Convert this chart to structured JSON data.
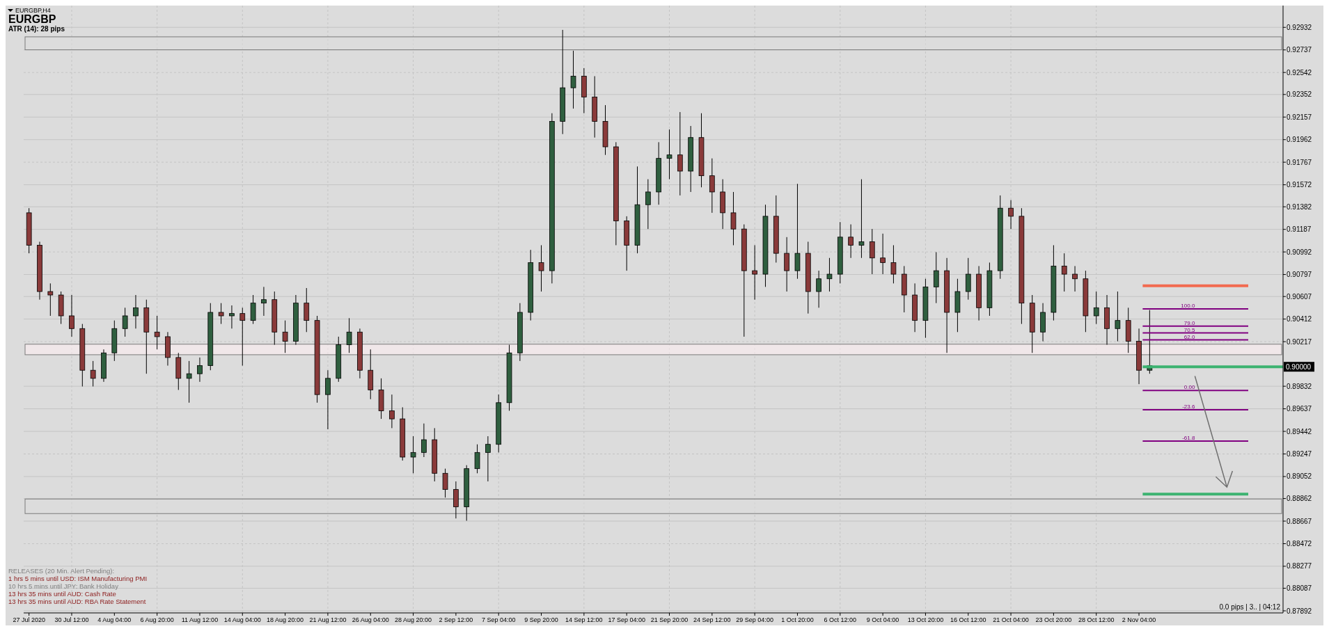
{
  "chart_data": {
    "type": "candlestick",
    "subtitle": "EURGBP,H4",
    "title": "EURGBP",
    "annotations": [
      "ATR (14): 28 pips",
      "RELEASES  (20 Min. Alert Pending):",
      "1 hrs 5 mins until USD: ISM Manufacturing PMI",
      "10 hrs 5 mins until JPY: Bank Holiday",
      "13 hrs 35 mins until AUD: Cash Rate",
      "13 hrs 35 mins until AUD: RBA Rate Statement",
      "0.0 pips | 3.. | 04:12",
      "100.0",
      "79.0",
      "70.5",
      "62.0",
      "0.00",
      "-23.6",
      "-61.8"
    ],
    "categories": [
      "27 Jul 2020",
      null,
      null,
      null,
      "30 Jul 12:00",
      null,
      null,
      null,
      "4 Aug 04:00",
      null,
      null,
      null,
      "6 Aug 20:00",
      null,
      null,
      null,
      "11 Aug 12:00",
      null,
      null,
      null,
      "14 Aug 04:00",
      null,
      null,
      null,
      "18 Aug 20:00",
      null,
      null,
      null,
      "21 Aug 12:00",
      null,
      null,
      null,
      "26 Aug 04:00",
      null,
      null,
      null,
      "28 Aug 20:00",
      null,
      null,
      null,
      "2 Sep 12:00",
      null,
      null,
      null,
      "7 Sep 04:00",
      null,
      null,
      null,
      "9 Sep 20:00",
      null,
      null,
      null,
      "14 Sep 12:00",
      null,
      null,
      null,
      "17 Sep 04:00",
      null,
      null,
      null,
      "21 Sep 20:00",
      null,
      null,
      null,
      "24 Sep 12:00",
      null,
      null,
      null,
      "29 Sep 04:00",
      null,
      null,
      null,
      "1 Oct 20:00",
      null,
      null,
      null,
      "6 Oct 12:00",
      null,
      null,
      null,
      "9 Oct 04:00",
      null,
      null,
      null,
      "13 Oct 20:00",
      null,
      null,
      null,
      "16 Oct 12:00",
      null,
      null,
      null,
      "21 Oct 04:00",
      null,
      null,
      null,
      "23 Oct 20:00",
      null,
      null,
      null,
      "28 Oct 12:00",
      null,
      null,
      null,
      "2 Nov 04:00",
      null,
      null,
      null,
      null,
      null,
      null,
      null,
      null,
      null,
      null,
      null,
      null,
      null
    ],
    "ohlc": [
      [
        0.9133,
        0.9137,
        0.9098,
        0.9105
      ],
      [
        0.9105,
        0.9108,
        0.9058,
        0.9065
      ],
      [
        0.9065,
        0.9072,
        0.9044,
        0.9062
      ],
      [
        0.9062,
        0.9065,
        0.9037,
        0.9044
      ],
      [
        0.9044,
        0.9062,
        0.9026,
        0.9033
      ],
      [
        0.9033,
        0.9037,
        0.8983,
        0.8997
      ],
      [
        0.8997,
        0.9005,
        0.8983,
        0.899
      ],
      [
        0.899,
        0.9015,
        0.8987,
        0.9012
      ],
      [
        0.9012,
        0.904,
        0.9005,
        0.9033
      ],
      [
        0.9033,
        0.9051,
        0.9026,
        0.9044
      ],
      [
        0.9044,
        0.9062,
        0.9033,
        0.9051
      ],
      [
        0.9051,
        0.9058,
        0.8994,
        0.903
      ],
      [
        0.903,
        0.9044,
        0.9015,
        0.9026
      ],
      [
        0.9026,
        0.903,
        0.9001,
        0.9008
      ],
      [
        0.9008,
        0.9012,
        0.898,
        0.899
      ],
      [
        0.899,
        0.9005,
        0.8969,
        0.8994
      ],
      [
        0.8994,
        0.9008,
        0.8987,
        0.9001
      ],
      [
        0.9001,
        0.9055,
        0.8997,
        0.9047
      ],
      [
        0.9047,
        0.9055,
        0.9037,
        0.9044
      ],
      [
        0.9044,
        0.9053,
        0.9033,
        0.9046
      ],
      [
        0.9046,
        0.9051,
        0.9001,
        0.904
      ],
      [
        0.904,
        0.9062,
        0.9037,
        0.9055
      ],
      [
        0.9055,
        0.9069,
        0.9044,
        0.9058
      ],
      [
        0.9058,
        0.9065,
        0.9019,
        0.903
      ],
      [
        0.903,
        0.904,
        0.9012,
        0.9022
      ],
      [
        0.9022,
        0.9062,
        0.9019,
        0.9055
      ],
      [
        0.9055,
        0.9068,
        0.903,
        0.904
      ],
      [
        0.904,
        0.9044,
        0.8969,
        0.8976
      ],
      [
        0.8976,
        0.8997,
        0.8946,
        0.899
      ],
      [
        0.899,
        0.9026,
        0.8987,
        0.9019
      ],
      [
        0.9019,
        0.9042,
        0.9012,
        0.903
      ],
      [
        0.903,
        0.9033,
        0.899,
        0.8997
      ],
      [
        0.8997,
        0.9015,
        0.8972,
        0.898
      ],
      [
        0.898,
        0.899,
        0.8955,
        0.8962
      ],
      [
        0.8962,
        0.8976,
        0.8947,
        0.8955
      ],
      [
        0.8955,
        0.8965,
        0.8919,
        0.8922
      ],
      [
        0.8922,
        0.894,
        0.8908,
        0.8926
      ],
      [
        0.8926,
        0.8951,
        0.8922,
        0.8937
      ],
      [
        0.8937,
        0.8947,
        0.8901,
        0.8908
      ],
      [
        0.8908,
        0.8912,
        0.8887,
        0.8894
      ],
      [
        0.8894,
        0.8901,
        0.8869,
        0.8879
      ],
      [
        0.8879,
        0.8915,
        0.8867,
        0.8912
      ],
      [
        0.8912,
        0.8933,
        0.8908,
        0.8926
      ],
      [
        0.8926,
        0.894,
        0.8901,
        0.8933
      ],
      [
        0.8933,
        0.8976,
        0.8926,
        0.8969
      ],
      [
        0.8969,
        0.9019,
        0.8962,
        0.9012
      ],
      [
        0.9012,
        0.9055,
        0.9005,
        0.9047
      ],
      [
        0.9047,
        0.9101,
        0.904,
        0.909
      ],
      [
        0.909,
        0.9105,
        0.9065,
        0.9083
      ],
      [
        0.9083,
        0.9219,
        0.9072,
        0.9212
      ],
      [
        0.9212,
        0.9291,
        0.9201,
        0.9241
      ],
      [
        0.9241,
        0.9273,
        0.9223,
        0.9251
      ],
      [
        0.9251,
        0.9258,
        0.9219,
        0.9233
      ],
      [
        0.9233,
        0.9251,
        0.9198,
        0.9212
      ],
      [
        0.9212,
        0.9226,
        0.9183,
        0.919
      ],
      [
        0.919,
        0.9194,
        0.9105,
        0.9126
      ],
      [
        0.9126,
        0.913,
        0.9083,
        0.9105
      ],
      [
        0.9105,
        0.9173,
        0.9098,
        0.914
      ],
      [
        0.914,
        0.9162,
        0.9119,
        0.9151
      ],
      [
        0.9151,
        0.9194,
        0.914,
        0.918
      ],
      [
        0.918,
        0.9205,
        0.9162,
        0.9183
      ],
      [
        0.9183,
        0.922,
        0.9148,
        0.9169
      ],
      [
        0.9169,
        0.9208,
        0.9151,
        0.9198
      ],
      [
        0.9198,
        0.9219,
        0.9155,
        0.9165
      ],
      [
        0.9165,
        0.918,
        0.9133,
        0.9151
      ],
      [
        0.9151,
        0.9162,
        0.9119,
        0.9133
      ],
      [
        0.9133,
        0.9151,
        0.9105,
        0.9119
      ],
      [
        0.9119,
        0.9123,
        0.9026,
        0.9083
      ],
      [
        0.9083,
        0.9105,
        0.9058,
        0.908
      ],
      [
        0.908,
        0.914,
        0.9069,
        0.913
      ],
      [
        0.913,
        0.9148,
        0.909,
        0.9098
      ],
      [
        0.9098,
        0.9112,
        0.9065,
        0.9083
      ],
      [
        0.9083,
        0.9158,
        0.9076,
        0.9098
      ],
      [
        0.9098,
        0.9108,
        0.9046,
        0.9065
      ],
      [
        0.9065,
        0.9083,
        0.9051,
        0.9076
      ],
      [
        0.9076,
        0.9094,
        0.9065,
        0.908
      ],
      [
        0.908,
        0.9125,
        0.9072,
        0.9112
      ],
      [
        0.9112,
        0.9123,
        0.9094,
        0.9105
      ],
      [
        0.9105,
        0.9162,
        0.9094,
        0.9108
      ],
      [
        0.9108,
        0.9119,
        0.908,
        0.9094
      ],
      [
        0.9094,
        0.9115,
        0.908,
        0.909
      ],
      [
        0.909,
        0.9105,
        0.9072,
        0.908
      ],
      [
        0.908,
        0.9087,
        0.9047,
        0.9062
      ],
      [
        0.9062,
        0.9072,
        0.903,
        0.904
      ],
      [
        0.904,
        0.9076,
        0.9025,
        0.9069
      ],
      [
        0.9069,
        0.9099,
        0.9055,
        0.9083
      ],
      [
        0.9083,
        0.9094,
        0.9012,
        0.9047
      ],
      [
        0.9047,
        0.9076,
        0.903,
        0.9065
      ],
      [
        0.9065,
        0.9094,
        0.9058,
        0.908
      ],
      [
        0.908,
        0.9087,
        0.904,
        0.9051
      ],
      [
        0.9051,
        0.909,
        0.9044,
        0.9083
      ],
      [
        0.9083,
        0.9148,
        0.9076,
        0.9137
      ],
      [
        0.9137,
        0.9144,
        0.9119,
        0.913
      ],
      [
        0.913,
        0.9137,
        0.9037,
        0.9055
      ],
      [
        0.9055,
        0.9062,
        0.9012,
        0.903
      ],
      [
        0.903,
        0.9055,
        0.9022,
        0.9047
      ],
      [
        0.9047,
        0.9105,
        0.904,
        0.9087
      ],
      [
        0.9087,
        0.9098,
        0.9065,
        0.908
      ],
      [
        0.908,
        0.9087,
        0.9065,
        0.9076
      ],
      [
        0.9076,
        0.9083,
        0.903,
        0.9044
      ],
      [
        0.9044,
        0.9065,
        0.9037,
        0.9051
      ],
      [
        0.9051,
        0.9062,
        0.9019,
        0.9033
      ],
      [
        0.9033,
        0.9065,
        0.9022,
        0.904
      ],
      [
        0.904,
        0.9051,
        0.9012,
        0.9022
      ],
      [
        0.9022,
        0.9033,
        0.8985,
        0.8997
      ],
      [
        0.8997,
        0.9049,
        0.8994,
        0.9001
      ],
      null,
      null,
      null,
      null,
      null,
      null,
      null,
      null,
      null,
      null,
      null,
      null
    ],
    "ylim": [
      0.87874,
      0.9312
    ],
    "yticks": [
      0.92932,
      0.92737,
      0.92542,
      0.92352,
      0.92157,
      0.91962,
      0.91767,
      0.91572,
      0.91382,
      0.91187,
      0.90992,
      0.90797,
      0.90607,
      0.90412,
      0.90217,
      0.89832,
      0.89637,
      0.89442,
      0.89247,
      0.89052,
      0.88862,
      0.88667,
      0.88472,
      0.88277,
      0.88087,
      0.87892
    ],
    "grid": true,
    "ref_lines": [
      {
        "axis": "y",
        "value": 0.907,
        "color": "#f26b50"
      },
      {
        "axis": "y",
        "value": 0.9,
        "label": "0.90000",
        "color": "#3cb371"
      },
      {
        "axis": "y",
        "value": 0.889,
        "color": "#3cb371"
      },
      {
        "axis": "y",
        "value": 0.905,
        "color": "#800080"
      },
      {
        "axis": "y",
        "value": 0.90352,
        "color": "#800080"
      },
      {
        "axis": "y",
        "value": 0.90292,
        "color": "#800080"
      },
      {
        "axis": "y",
        "value": 0.90232,
        "color": "#800080"
      },
      {
        "axis": "y",
        "value": 0.89795,
        "color": "#800080"
      },
      {
        "axis": "y",
        "value": 0.89629,
        "color": "#800080"
      },
      {
        "axis": "y",
        "value": 0.89359,
        "color": "#800080"
      }
    ],
    "bands": [
      {
        "axis": "y",
        "from": 0.92738,
        "to": 0.9285,
        "color": "#dcdcdc"
      },
      {
        "axis": "y",
        "from": 0.90104,
        "to": 0.90195,
        "color": "#fdeef2"
      },
      {
        "axis": "y",
        "from": 0.88732,
        "to": 0.88858,
        "color": "#dcdcdc"
      }
    ]
  }
}
